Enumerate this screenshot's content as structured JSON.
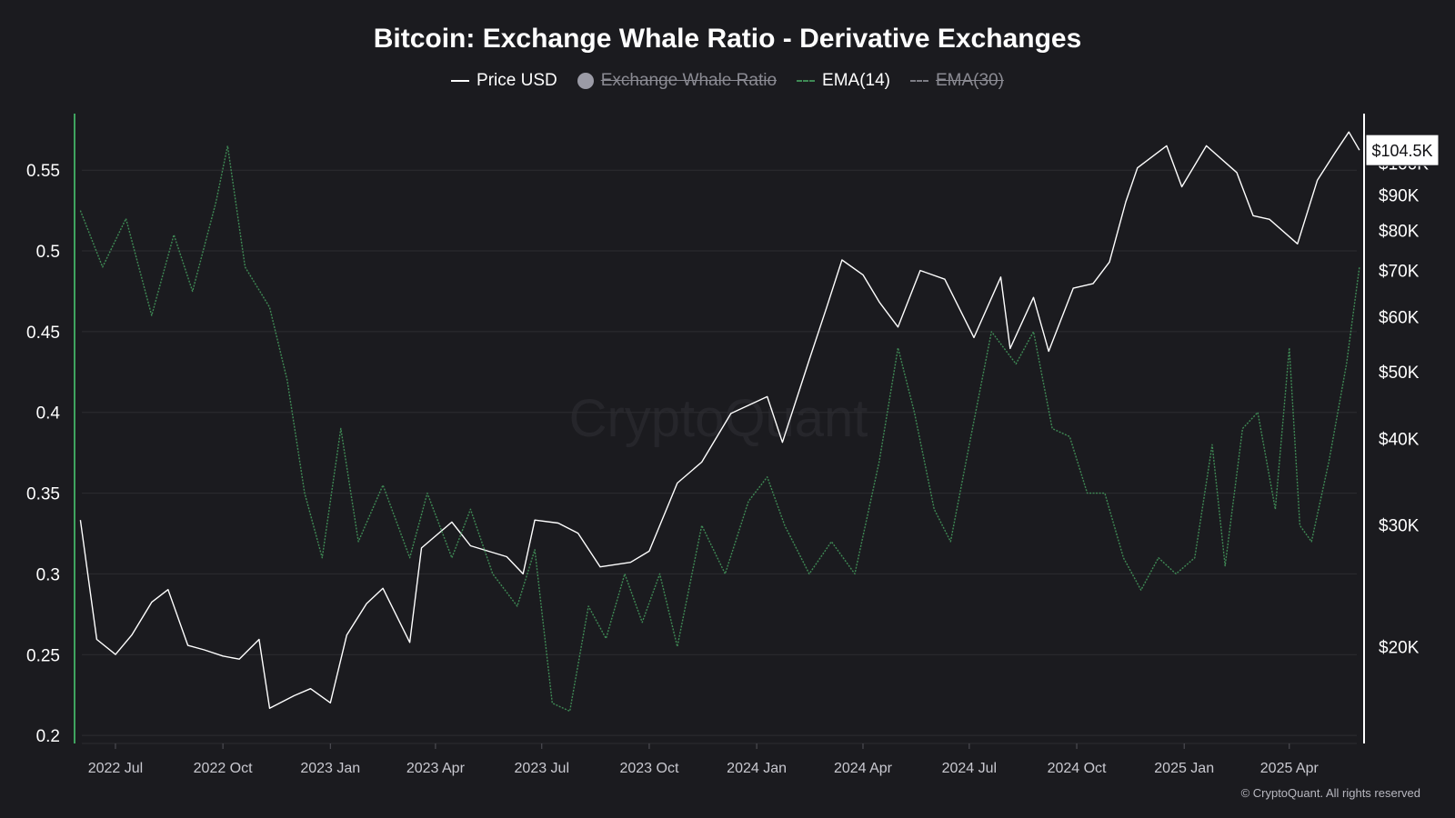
{
  "title": "Bitcoin: Exchange Whale Ratio - Derivative Exchanges",
  "legend": {
    "price": "Price USD",
    "ratio": "Exchange Whale Ratio",
    "ema14": "EMA(14)",
    "ema30": "EMA(30)"
  },
  "copyright": "© CryptoQuant. All rights reserved",
  "watermark": "CryptoQuant",
  "price_tag": "$104.5K",
  "colors": {
    "background": "#1b1b1f",
    "price": "#ffffff",
    "ema14": "#3f8a55",
    "grid": "#2c2c31",
    "left_axis": "#3fa35f"
  },
  "chart_data": {
    "type": "line",
    "x_ticks": [
      "2022 Jul",
      "2022 Oct",
      "2023 Jan",
      "2023 Apr",
      "2023 Jul",
      "2023 Oct",
      "2024 Jan",
      "2024 Apr",
      "2024 Jul",
      "2024 Oct",
      "2025 Jan",
      "2025 Apr"
    ],
    "left_axis": {
      "ticks": [
        "0.55",
        "0.5",
        "0.45",
        "0.4",
        "0.35",
        "0.3",
        "0.25",
        "0.2"
      ],
      "ylim": [
        0.195,
        0.585
      ]
    },
    "right_axis": {
      "scale": "log",
      "ticks": [
        "$20K",
        "$30K",
        "$40K",
        "$50K",
        "$60K",
        "$70K",
        "$80K",
        "$90K",
        "$100K"
      ],
      "ylim": [
        14500,
        118000
      ]
    },
    "series": [
      {
        "name": "Price USD",
        "axis": "right",
        "points": [
          [
            "2022-06-01",
            30500
          ],
          [
            "2022-06-15",
            20500
          ],
          [
            "2022-07-01",
            19500
          ],
          [
            "2022-07-15",
            20800
          ],
          [
            "2022-08-01",
            23200
          ],
          [
            "2022-08-15",
            24200
          ],
          [
            "2022-09-01",
            20100
          ],
          [
            "2022-09-15",
            19800
          ],
          [
            "2022-10-01",
            19400
          ],
          [
            "2022-10-15",
            19200
          ],
          [
            "2022-11-01",
            20500
          ],
          [
            "2022-11-10",
            16300
          ],
          [
            "2022-12-01",
            17000
          ],
          [
            "2022-12-15",
            17400
          ],
          [
            "2023-01-01",
            16600
          ],
          [
            "2023-01-15",
            20800
          ],
          [
            "2023-02-01",
            23100
          ],
          [
            "2023-02-15",
            24300
          ],
          [
            "2023-03-10",
            20300
          ],
          [
            "2023-03-20",
            27800
          ],
          [
            "2023-04-15",
            30300
          ],
          [
            "2023-05-01",
            28000
          ],
          [
            "2023-06-01",
            27000
          ],
          [
            "2023-06-15",
            25500
          ],
          [
            "2023-06-25",
            30500
          ],
          [
            "2023-07-15",
            30200
          ],
          [
            "2023-08-01",
            29200
          ],
          [
            "2023-08-20",
            26100
          ],
          [
            "2023-09-15",
            26500
          ],
          [
            "2023-10-01",
            27500
          ],
          [
            "2023-10-25",
            34500
          ],
          [
            "2023-11-15",
            37000
          ],
          [
            "2023-12-10",
            43500
          ],
          [
            "2024-01-10",
            46000
          ],
          [
            "2024-01-23",
            39500
          ],
          [
            "2024-02-15",
            52000
          ],
          [
            "2024-03-01",
            62000
          ],
          [
            "2024-03-14",
            72500
          ],
          [
            "2024-04-01",
            69000
          ],
          [
            "2024-04-15",
            63000
          ],
          [
            "2024-05-01",
            58000
          ],
          [
            "2024-05-20",
            70000
          ],
          [
            "2024-06-10",
            68000
          ],
          [
            "2024-07-05",
            56000
          ],
          [
            "2024-07-28",
            68500
          ],
          [
            "2024-08-05",
            54000
          ],
          [
            "2024-08-25",
            64000
          ],
          [
            "2024-09-07",
            53500
          ],
          [
            "2024-09-28",
            66000
          ],
          [
            "2024-10-15",
            67000
          ],
          [
            "2024-10-29",
            72000
          ],
          [
            "2024-11-12",
            88000
          ],
          [
            "2024-11-22",
            98500
          ],
          [
            "2024-12-17",
            106000
          ],
          [
            "2024-12-30",
            92500
          ],
          [
            "2025-01-20",
            106000
          ],
          [
            "2025-02-15",
            97000
          ],
          [
            "2025-03-01",
            84000
          ],
          [
            "2025-03-15",
            83000
          ],
          [
            "2025-04-08",
            76500
          ],
          [
            "2025-04-25",
            94500
          ],
          [
            "2025-05-10",
            103500
          ],
          [
            "2025-05-22",
            111000
          ],
          [
            "2025-05-31",
            104500
          ]
        ]
      },
      {
        "name": "EMA(14)",
        "axis": "left",
        "points": [
          [
            "2022-06-01",
            0.525
          ],
          [
            "2022-06-20",
            0.49
          ],
          [
            "2022-07-10",
            0.52
          ],
          [
            "2022-08-01",
            0.46
          ],
          [
            "2022-08-20",
            0.51
          ],
          [
            "2022-09-05",
            0.475
          ],
          [
            "2022-09-25",
            0.53
          ],
          [
            "2022-10-05",
            0.565
          ],
          [
            "2022-10-20",
            0.49
          ],
          [
            "2022-11-10",
            0.465
          ],
          [
            "2022-11-25",
            0.42
          ],
          [
            "2022-12-10",
            0.35
          ],
          [
            "2022-12-25",
            0.31
          ],
          [
            "2023-01-10",
            0.39
          ],
          [
            "2023-01-25",
            0.32
          ],
          [
            "2023-02-15",
            0.355
          ],
          [
            "2023-03-10",
            0.31
          ],
          [
            "2023-03-25",
            0.35
          ],
          [
            "2023-04-15",
            0.31
          ],
          [
            "2023-05-01",
            0.34
          ],
          [
            "2023-05-20",
            0.3
          ],
          [
            "2023-06-10",
            0.28
          ],
          [
            "2023-06-25",
            0.315
          ],
          [
            "2023-07-10",
            0.22
          ],
          [
            "2023-07-25",
            0.215
          ],
          [
            "2023-08-10",
            0.28
          ],
          [
            "2023-08-25",
            0.26
          ],
          [
            "2023-09-10",
            0.3
          ],
          [
            "2023-09-25",
            0.27
          ],
          [
            "2023-10-10",
            0.3
          ],
          [
            "2023-10-25",
            0.255
          ],
          [
            "2023-11-15",
            0.33
          ],
          [
            "2023-12-05",
            0.3
          ],
          [
            "2023-12-25",
            0.345
          ],
          [
            "2024-01-10",
            0.36
          ],
          [
            "2024-01-25",
            0.33
          ],
          [
            "2024-02-15",
            0.3
          ],
          [
            "2024-03-05",
            0.32
          ],
          [
            "2024-03-25",
            0.3
          ],
          [
            "2024-04-15",
            0.37
          ],
          [
            "2024-05-01",
            0.44
          ],
          [
            "2024-05-15",
            0.4
          ],
          [
            "2024-06-01",
            0.34
          ],
          [
            "2024-06-15",
            0.32
          ],
          [
            "2024-07-01",
            0.38
          ],
          [
            "2024-07-20",
            0.45
          ],
          [
            "2024-08-10",
            0.43
          ],
          [
            "2024-08-25",
            0.45
          ],
          [
            "2024-09-10",
            0.39
          ],
          [
            "2024-09-25",
            0.385
          ],
          [
            "2024-10-10",
            0.35
          ],
          [
            "2024-10-25",
            0.35
          ],
          [
            "2024-11-10",
            0.31
          ],
          [
            "2024-11-25",
            0.29
          ],
          [
            "2024-12-10",
            0.31
          ],
          [
            "2024-12-25",
            0.3
          ],
          [
            "2025-01-10",
            0.31
          ],
          [
            "2025-01-25",
            0.38
          ],
          [
            "2025-02-05",
            0.305
          ],
          [
            "2025-02-20",
            0.39
          ],
          [
            "2025-03-05",
            0.4
          ],
          [
            "2025-03-20",
            0.34
          ],
          [
            "2025-04-01",
            0.44
          ],
          [
            "2025-04-10",
            0.33
          ],
          [
            "2025-04-20",
            0.32
          ],
          [
            "2025-05-05",
            0.37
          ],
          [
            "2025-05-20",
            0.43
          ],
          [
            "2025-05-31",
            0.49
          ]
        ]
      }
    ]
  }
}
